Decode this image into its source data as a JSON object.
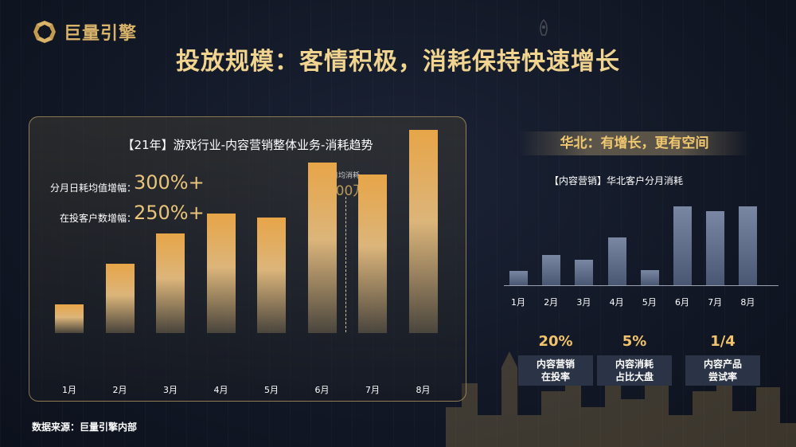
{
  "brand": {
    "name": "巨量引擎"
  },
  "title": "投放规模：客情积极，消耗保持快速增长",
  "left_panel": {
    "title": "【21年】游戏行业-内容营销整体业务-消耗趋势",
    "metric1_label": "分月日耗均值增幅：",
    "metric1_value": "300%+",
    "metric2_label": "在投客户数增幅：",
    "metric2_value": "250%+",
    "avg_label": "日均消耗",
    "avg_value": "1000万+"
  },
  "source": "数据来源：巨量引擎内部",
  "right_panel": {
    "banner": "华北：有增长，更有空间",
    "subtitle": "【内容营销】华北客户分月消耗",
    "stats": [
      {
        "value": "20%",
        "line1": "内容营销",
        "line2": "在投率"
      },
      {
        "value": "5%",
        "line1": "内容消耗",
        "line2": "占比大盘"
      },
      {
        "value": "1/4",
        "line1": "内容产品",
        "line2": "尝试率"
      }
    ]
  },
  "chart_data": [
    {
      "type": "bar",
      "title": "【21年】游戏行业-内容营销整体业务-消耗趋势",
      "categories": [
        "1月",
        "2月",
        "3月",
        "4月",
        "5月",
        "6月",
        "7月",
        "8月"
      ],
      "values": [
        14,
        34,
        49,
        59,
        57,
        84,
        78,
        100
      ],
      "ylim": [
        0,
        100
      ],
      "grid": false,
      "color": "#e3b262"
    },
    {
      "type": "bar",
      "title": "【内容营销】华北客户分月消耗",
      "categories": [
        "1月",
        "2月",
        "3月",
        "4月",
        "5月",
        "6月",
        "7月",
        "8月"
      ],
      "values": [
        18,
        38,
        32,
        60,
        19,
        99,
        93,
        99
      ],
      "ylim": [
        0,
        100
      ],
      "grid": false,
      "color": "#5d6a88"
    }
  ]
}
